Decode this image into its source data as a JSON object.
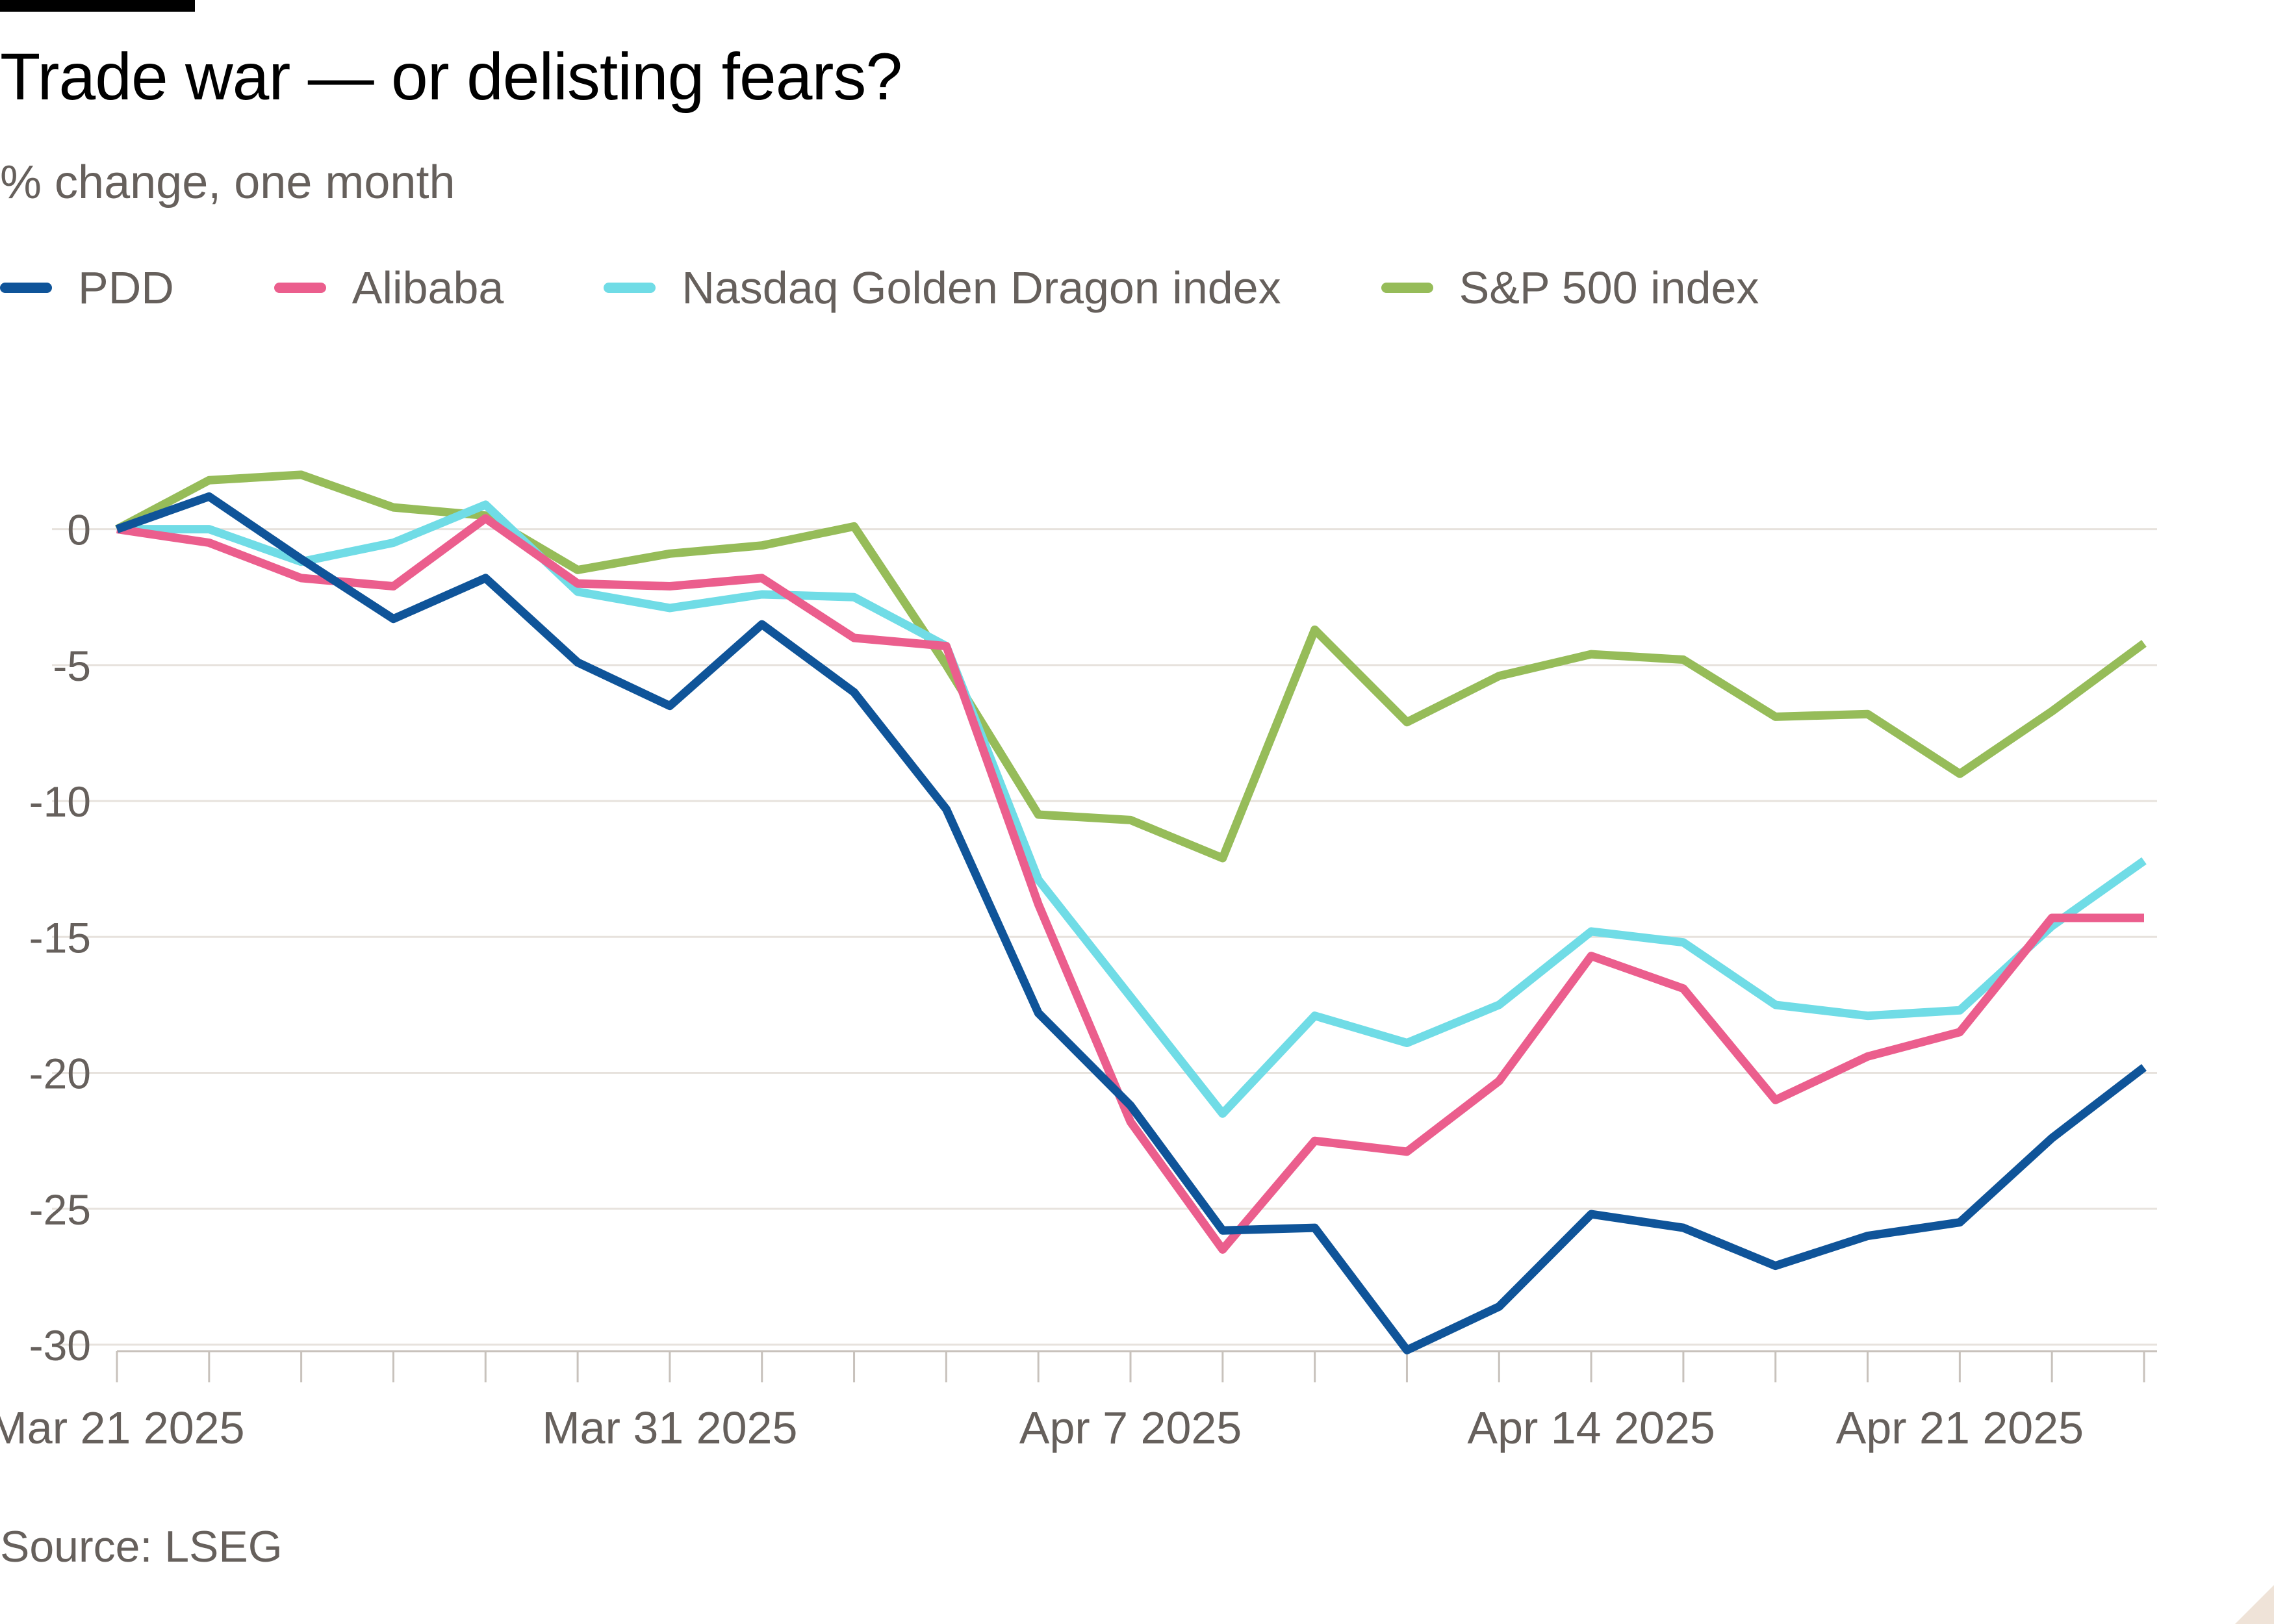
{
  "chart_data": {
    "type": "line",
    "title": "Trade war — or delisting fears?",
    "subtitle": "% change, one month",
    "source": "Source: LSEG",
    "xlabel": "",
    "ylabel": "",
    "ylim": [
      -30,
      2.5
    ],
    "yticks": [
      0,
      -5,
      -10,
      -15,
      -20,
      -25,
      -30
    ],
    "x": [
      "2025-03-21",
      "2025-03-24",
      "2025-03-25",
      "2025-03-26",
      "2025-03-27",
      "2025-03-28",
      "2025-03-31",
      "2025-04-01",
      "2025-04-02",
      "2025-04-03",
      "2025-04-04",
      "2025-04-07",
      "2025-04-08",
      "2025-04-09",
      "2025-04-10",
      "2025-04-11",
      "2025-04-14",
      "2025-04-15",
      "2025-04-16",
      "2025-04-17",
      "2025-04-21",
      "2025-04-22",
      "2025-04-23"
    ],
    "xtick_labels": [
      {
        "date": "2025-03-21",
        "label": "Mar 21 2025"
      },
      {
        "date": "2025-03-31",
        "label": "Mar 31 2025"
      },
      {
        "date": "2025-04-07",
        "label": "Apr 7 2025"
      },
      {
        "date": "2025-04-14",
        "label": "Apr 14 2025"
      },
      {
        "date": "2025-04-21",
        "label": "Apr 21 2025"
      }
    ],
    "grid": true,
    "legend_position": "top-left",
    "series": [
      {
        "name": "PDD",
        "color": "#0f5499",
        "values": [
          0,
          1.2,
          -1.1,
          -3.3,
          -1.8,
          -4.9,
          -6.5,
          -3.5,
          -6.0,
          -10.3,
          -17.8,
          -21.2,
          -25.8,
          -25.7,
          -30.2,
          -28.6,
          -25.2,
          -25.7,
          -27.1,
          -26.0,
          -25.5,
          -22.4,
          -19.8
        ]
      },
      {
        "name": "Alibaba",
        "color": "#eb5e8d",
        "values": [
          0,
          -0.5,
          -1.8,
          -2.1,
          0.4,
          -2.0,
          -2.1,
          -1.8,
          -4.0,
          -4.3,
          -13.8,
          -21.8,
          -26.5,
          -22.5,
          -22.9,
          -20.3,
          -15.7,
          -16.9,
          -21.0,
          -19.4,
          -18.5,
          -14.3,
          -14.3
        ]
      },
      {
        "name": "Nasdaq Golden Dragon index",
        "color": "#70dce6",
        "values": [
          0,
          0,
          -1.2,
          -0.5,
          0.9,
          -2.3,
          -2.9,
          -2.4,
          -2.5,
          -4.3,
          -12.9,
          -17.2,
          -21.5,
          -17.9,
          -18.9,
          -17.5,
          -14.8,
          -15.2,
          -17.5,
          -17.9,
          -17.7,
          -14.6,
          -12.2
        ]
      },
      {
        "name": "S&P 500 index",
        "color": "#96bc59",
        "values": [
          0,
          1.8,
          2.0,
          0.8,
          0.5,
          -1.5,
          -0.9,
          -0.6,
          0.1,
          -5.0,
          -10.5,
          -10.7,
          -12.1,
          -3.7,
          -7.1,
          -5.4,
          -4.6,
          -4.8,
          -6.9,
          -6.8,
          -9.0,
          -6.7,
          -4.2
        ]
      }
    ]
  },
  "colors": {
    "text": "#000000",
    "muted": "#66605c",
    "gridline": "#e7e2dd",
    "axis": "#c8c2bc"
  }
}
